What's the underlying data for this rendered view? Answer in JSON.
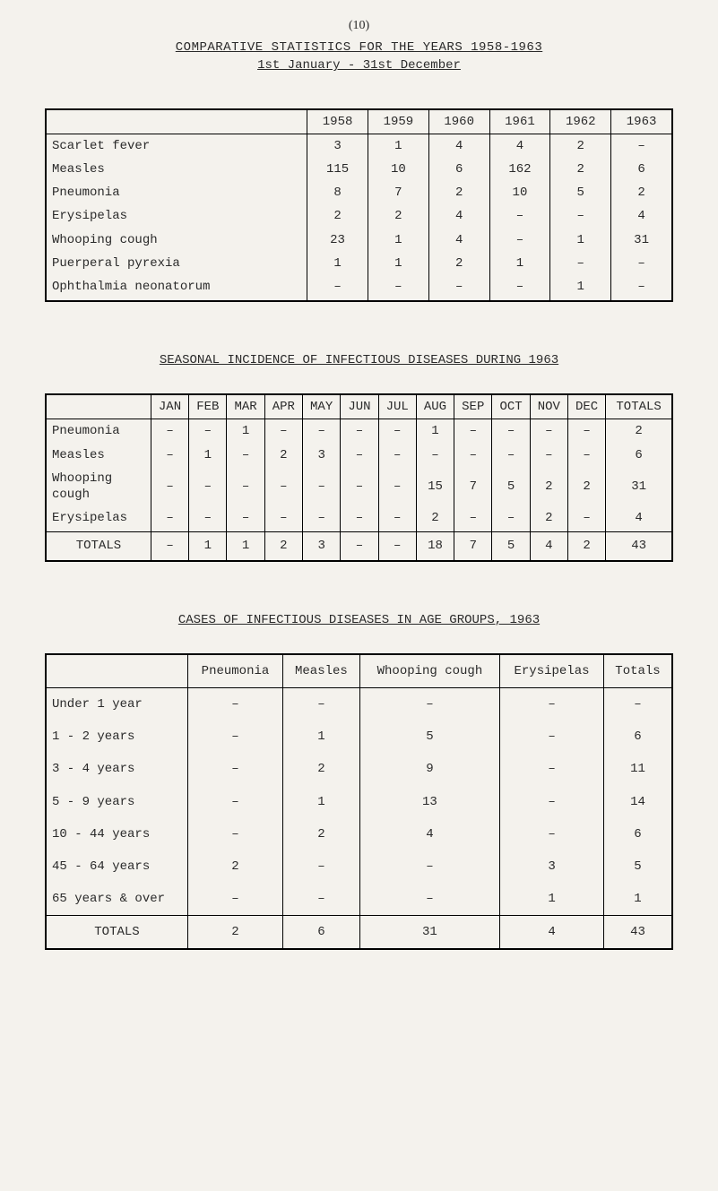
{
  "page_number": "(10)",
  "main_title": "COMPARATIVE STATISTICS FOR THE YEARS 1958-1963",
  "main_subtitle": "1st January - 31st December",
  "table_a": {
    "columns": [
      "",
      "1958",
      "1959",
      "1960",
      "1961",
      "1962",
      "1963"
    ],
    "rows": [
      {
        "label": "Scarlet fever",
        "vals": [
          "3",
          "1",
          "4",
          "4",
          "2",
          "–"
        ]
      },
      {
        "label": "Measles",
        "vals": [
          "115",
          "10",
          "6",
          "162",
          "2",
          "6"
        ]
      },
      {
        "label": "Pneumonia",
        "vals": [
          "8",
          "7",
          "2",
          "10",
          "5",
          "2"
        ]
      },
      {
        "label": "Erysipelas",
        "vals": [
          "2",
          "2",
          "4",
          "–",
          "–",
          "4"
        ]
      },
      {
        "label": "Whooping cough",
        "vals": [
          "23",
          "1",
          "4",
          "–",
          "1",
          "31"
        ]
      },
      {
        "label": "Puerperal pyrexia",
        "vals": [
          "1",
          "1",
          "2",
          "1",
          "–",
          "–"
        ]
      },
      {
        "label": "Ophthalmia neonatorum",
        "vals": [
          "–",
          "–",
          "–",
          "–",
          "1",
          "–"
        ]
      }
    ]
  },
  "section_b_title": "SEASONAL INCIDENCE OF INFECTIOUS DISEASES DURING 1963",
  "table_b": {
    "columns": [
      "",
      "JAN",
      "FEB",
      "MAR",
      "APR",
      "MAY",
      "JUN",
      "JUL",
      "AUG",
      "SEP",
      "OCT",
      "NOV",
      "DEC",
      "TOTALS"
    ],
    "rows": [
      {
        "label": "Pneumonia",
        "vals": [
          "–",
          "–",
          "1",
          "–",
          "–",
          "–",
          "–",
          "1",
          "–",
          "–",
          "–",
          "–",
          "2"
        ]
      },
      {
        "label": "Measles",
        "vals": [
          "–",
          "1",
          "–",
          "2",
          "3",
          "–",
          "–",
          "–",
          "–",
          "–",
          "–",
          "–",
          "6"
        ]
      },
      {
        "label": "Whooping cough",
        "vals": [
          "–",
          "–",
          "–",
          "–",
          "–",
          "–",
          "–",
          "15",
          "7",
          "5",
          "2",
          "2",
          "31"
        ]
      },
      {
        "label": "Erysipelas",
        "vals": [
          "–",
          "–",
          "–",
          "–",
          "–",
          "–",
          "–",
          "2",
          "–",
          "–",
          "2",
          "–",
          "4"
        ]
      }
    ],
    "totals": {
      "label": "TOTALS",
      "vals": [
        "–",
        "1",
        "1",
        "2",
        "3",
        "–",
        "–",
        "18",
        "7",
        "5",
        "4",
        "2",
        "43"
      ]
    }
  },
  "section_c_title": "CASES OF INFECTIOUS DISEASES IN AGE GROUPS, 1963",
  "table_c": {
    "columns": [
      "",
      "Pneumonia",
      "Measles",
      "Whooping cough",
      "Erysipelas",
      "Totals"
    ],
    "rows": [
      {
        "label": "Under 1 year",
        "vals": [
          "–",
          "–",
          "–",
          "–",
          "–"
        ]
      },
      {
        "label": "1 - 2 years",
        "vals": [
          "–",
          "1",
          "5",
          "–",
          "6"
        ]
      },
      {
        "label": "3 - 4 years",
        "vals": [
          "–",
          "2",
          "9",
          "–",
          "11"
        ]
      },
      {
        "label": "5 - 9 years",
        "vals": [
          "–",
          "1",
          "13",
          "–",
          "14"
        ]
      },
      {
        "label": "10 - 44 years",
        "vals": [
          "–",
          "2",
          "4",
          "–",
          "6"
        ]
      },
      {
        "label": "45 - 64 years",
        "vals": [
          "2",
          "–",
          "–",
          "3",
          "5"
        ]
      },
      {
        "label": "65 years & over",
        "vals": [
          "–",
          "–",
          "–",
          "1",
          "1"
        ]
      }
    ],
    "totals": {
      "label": "TOTALS",
      "vals": [
        "2",
        "6",
        "31",
        "4",
        "43"
      ]
    }
  }
}
